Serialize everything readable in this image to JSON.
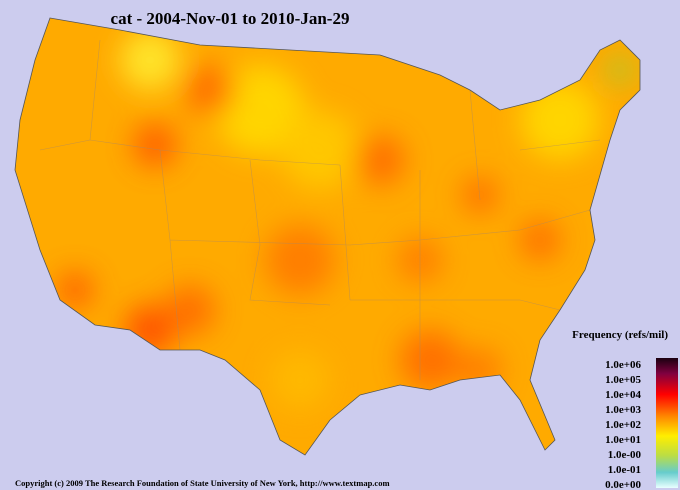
{
  "title": "cat - 2004-Nov-01 to 2010-Jan-29",
  "legend": {
    "title": "Frequency (refs/mil)",
    "labels": [
      "1.0e+06",
      "1.0e+05",
      "1.0e+04",
      "1.0e+03",
      "1.0e+02",
      "1.0e+01",
      "1.0e-00",
      "1.0e-01",
      "0.0e+00"
    ]
  },
  "footer": "Copyright (c) 2009 The Research Foundation of State University of New York, http://www.textmap.com"
}
